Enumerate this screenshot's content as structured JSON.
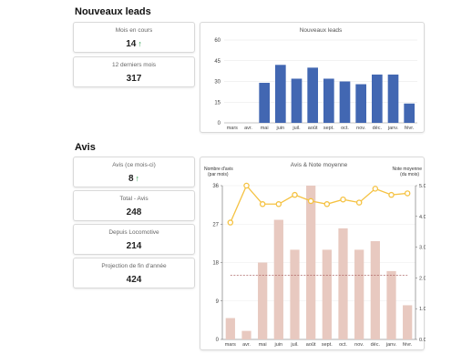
{
  "leads": {
    "section_title": "Nouveaux leads",
    "cards": [
      {
        "label": "Mois en cours",
        "value": "14",
        "trend": "↑"
      },
      {
        "label": "12 derniers mois",
        "value": "317"
      }
    ]
  },
  "avis": {
    "section_title": "Avis",
    "cards": [
      {
        "label": "Avis (ce mois-ci)",
        "value": "8",
        "trend": "↑"
      },
      {
        "label": "Total - Avis",
        "value": "248"
      },
      {
        "label": "Depuis Locomotive",
        "value": "214"
      },
      {
        "label": "Projection de fin d'année",
        "value": "424"
      }
    ]
  },
  "colors": {
    "leads_bar": "#4267b2",
    "avis_bar": "#e8c9c0",
    "note_line": "#f5c242",
    "trend_up": "#2e9e4f"
  },
  "chart_data": [
    {
      "type": "bar",
      "title": "Nouveaux leads",
      "categories": [
        "mars",
        "avr.",
        "mai",
        "juin",
        "juil.",
        "août",
        "sept.",
        "oct.",
        "nov.",
        "déc.",
        "janv.",
        "févr."
      ],
      "values": [
        0,
        0,
        29,
        42,
        32,
        40,
        32,
        30,
        28,
        35,
        35,
        14
      ],
      "ylim": [
        0,
        60
      ],
      "yticks": [
        "0",
        "15",
        "30",
        "45",
        "60"
      ],
      "grid": true
    },
    {
      "type": "bar",
      "title": "Avis & Note moyenne",
      "y_left_label_1": "Nombre d'avis",
      "y_left_label_2": "(par mois)",
      "y_right_label_1": "Note moyenne",
      "y_right_label_2": "(du mois)",
      "categories": [
        "mars",
        "avr.",
        "mai",
        "juin",
        "juil.",
        "août",
        "sept.",
        "oct.",
        "nov.",
        "déc.",
        "janv.",
        "févr."
      ],
      "bar_values": [
        5,
        2,
        18,
        28,
        21,
        36,
        21,
        26,
        21,
        23,
        16,
        8
      ],
      "line_values": [
        3.8,
        5.0,
        4.4,
        4.4,
        4.7,
        4.5,
        4.4,
        4.55,
        4.45,
        4.9,
        4.7,
        4.75
      ],
      "ref_line_left": 15,
      "ylim_left": [
        0,
        36
      ],
      "ylim_right": [
        0,
        5
      ],
      "yticks_left": [
        "0",
        "9",
        "18",
        "27",
        "36"
      ],
      "yticks_right": [
        "0.0",
        "1.0",
        "2.0",
        "3.0",
        "4.0",
        "5.0"
      ]
    }
  ]
}
